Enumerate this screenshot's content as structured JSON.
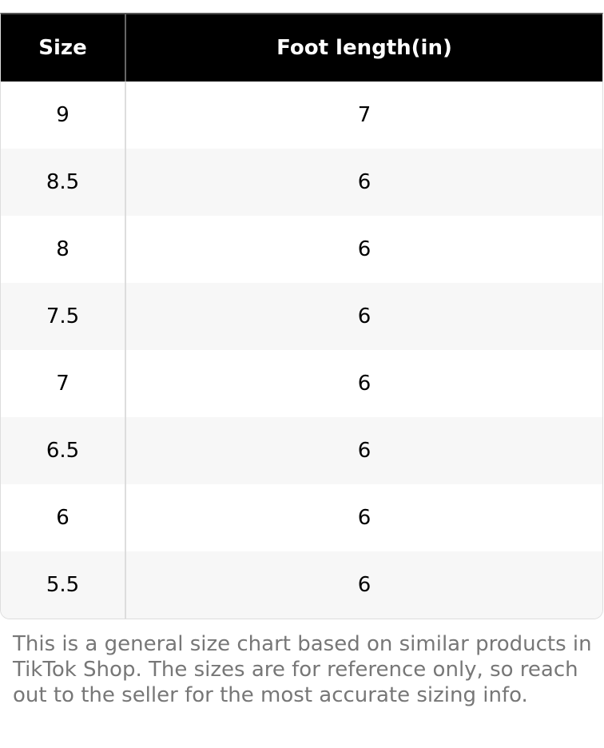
{
  "table": {
    "headers": [
      "Size",
      "Foot length(in)"
    ],
    "rows": [
      [
        "9",
        "7"
      ],
      [
        "8.5",
        "6"
      ],
      [
        "8",
        "6"
      ],
      [
        "7.5",
        "6"
      ],
      [
        "7",
        "6"
      ],
      [
        "6.5",
        "6"
      ],
      [
        "6",
        "6"
      ],
      [
        "5.5",
        "6"
      ]
    ]
  },
  "note": "This is a general size chart based on similar products in TikTok Shop. The sizes are for reference only, so reach out to the seller for the most accurate sizing info."
}
